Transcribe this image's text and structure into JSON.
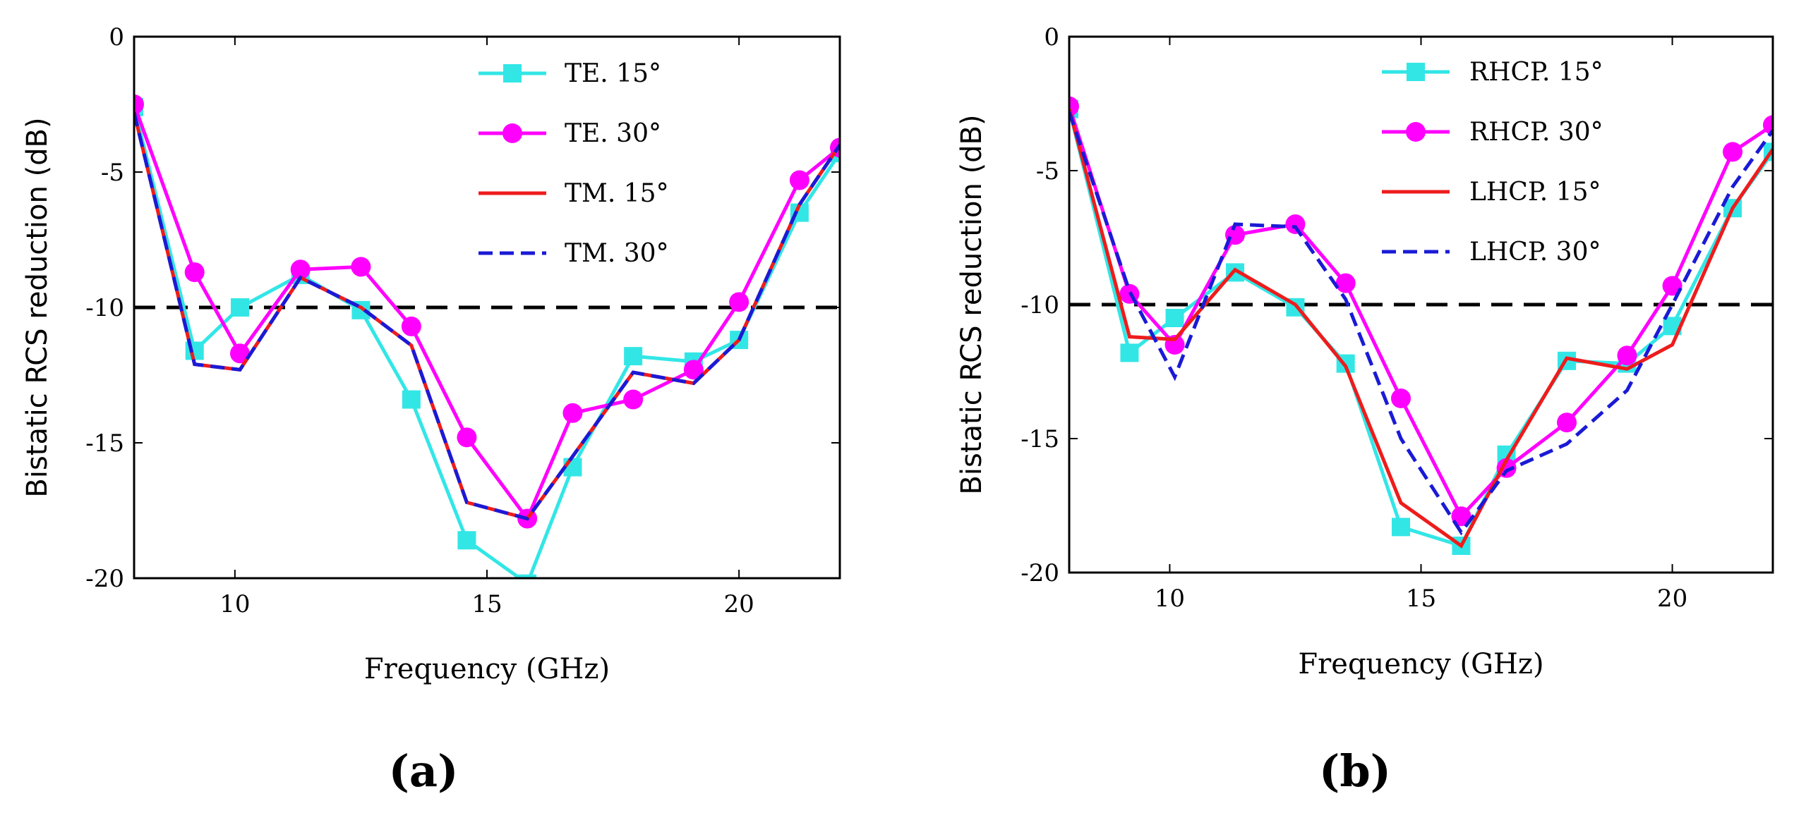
{
  "chart_data": [
    {
      "panel_label": "(a)",
      "type": "line",
      "xlabel": "Frequency (GHz)",
      "ylabel": "Bistatic RCS reduction (dB)",
      "xlim": [
        8,
        22
      ],
      "ylim": [
        -20,
        0
      ],
      "xticks": [
        10,
        15,
        20
      ],
      "yticks": [
        0,
        -5,
        -10,
        -15,
        -20
      ],
      "reference_line": {
        "y": -10,
        "style": "dashed",
        "color": "#000000"
      },
      "x": [
        8,
        9.2,
        10.1,
        11.3,
        12.5,
        13.5,
        14.6,
        15.8,
        16.7,
        17.9,
        19.1,
        20,
        21.2,
        22
      ],
      "series": [
        {
          "name": "TE. 15°",
          "color": "#33e6e6",
          "dash": "solid",
          "marker": "square",
          "values": [
            -2.6,
            -11.6,
            -10.0,
            -8.8,
            -10.1,
            -13.4,
            -18.6,
            -20.2,
            -15.9,
            -11.8,
            -12.0,
            -11.2,
            -6.5,
            -4.3
          ]
        },
        {
          "name": "TE. 30°",
          "color": "#ff00ff",
          "dash": "solid",
          "marker": "circle",
          "values": [
            -2.5,
            -8.7,
            -11.7,
            -8.6,
            -8.5,
            -10.7,
            -14.8,
            -17.8,
            -13.9,
            -13.4,
            -12.3,
            -9.8,
            -5.3,
            -4.1
          ]
        },
        {
          "name": "TM. 15°",
          "color": "#ee1c1c",
          "dash": "solid",
          "marker": "none",
          "values": [
            -2.8,
            -12.1,
            -12.3,
            -8.9,
            -10.0,
            -11.4,
            -17.2,
            -17.8,
            -15.5,
            -12.4,
            -12.8,
            -11.2,
            -6.2,
            -4.0
          ]
        },
        {
          "name": "TM. 30°",
          "color": "#1a1ad6",
          "dash": "dashed",
          "marker": "none",
          "values": [
            -2.8,
            -12.1,
            -12.3,
            -8.9,
            -10.0,
            -11.4,
            -17.2,
            -17.8,
            -15.5,
            -12.4,
            -12.8,
            -11.2,
            -6.2,
            -4.0
          ]
        }
      ]
    },
    {
      "panel_label": "(b)",
      "type": "line",
      "xlabel": "Frequency (GHz)",
      "ylabel": "Bistatic RCS reduction (dB)",
      "xlim": [
        8,
        22
      ],
      "ylim": [
        -20,
        0
      ],
      "xticks": [
        10,
        15,
        20
      ],
      "yticks": [
        0,
        -5,
        -10,
        -15,
        -20
      ],
      "reference_line": {
        "y": -10,
        "style": "dashed",
        "color": "#000000"
      },
      "x": [
        8,
        9.2,
        10.1,
        11.3,
        12.5,
        13.5,
        14.6,
        15.8,
        16.7,
        17.9,
        19.1,
        20,
        21.2,
        22
      ],
      "series": [
        {
          "name": "RHCP. 15°",
          "color": "#33e6e6",
          "dash": "solid",
          "marker": "square",
          "values": [
            -2.7,
            -11.8,
            -10.5,
            -8.8,
            -10.1,
            -12.2,
            -18.3,
            -19.0,
            -15.6,
            -12.1,
            -12.2,
            -10.8,
            -6.4,
            -4.3
          ]
        },
        {
          "name": "RHCP. 30°",
          "color": "#ff00ff",
          "dash": "solid",
          "marker": "circle",
          "values": [
            -2.6,
            -9.6,
            -11.5,
            -7.4,
            -7.0,
            -9.2,
            -13.5,
            -17.9,
            -16.1,
            -14.4,
            -11.9,
            -9.3,
            -4.3,
            -3.3
          ]
        },
        {
          "name": "LHCP. 15°",
          "color": "#ee1c1c",
          "dash": "solid",
          "marker": "none",
          "values": [
            -2.7,
            -11.2,
            -11.3,
            -8.7,
            -10.0,
            -12.3,
            -17.4,
            -19.0,
            -15.8,
            -12.0,
            -12.4,
            -11.5,
            -6.4,
            -4.2
          ]
        },
        {
          "name": "LHCP. 30°",
          "color": "#1a1ad6",
          "dash": "dashed",
          "marker": "none",
          "values": [
            -2.8,
            -9.5,
            -12.7,
            -7.0,
            -7.1,
            -9.8,
            -15.0,
            -18.5,
            -16.2,
            -15.2,
            -13.2,
            -10.0,
            -5.6,
            -3.5
          ]
        }
      ]
    }
  ]
}
